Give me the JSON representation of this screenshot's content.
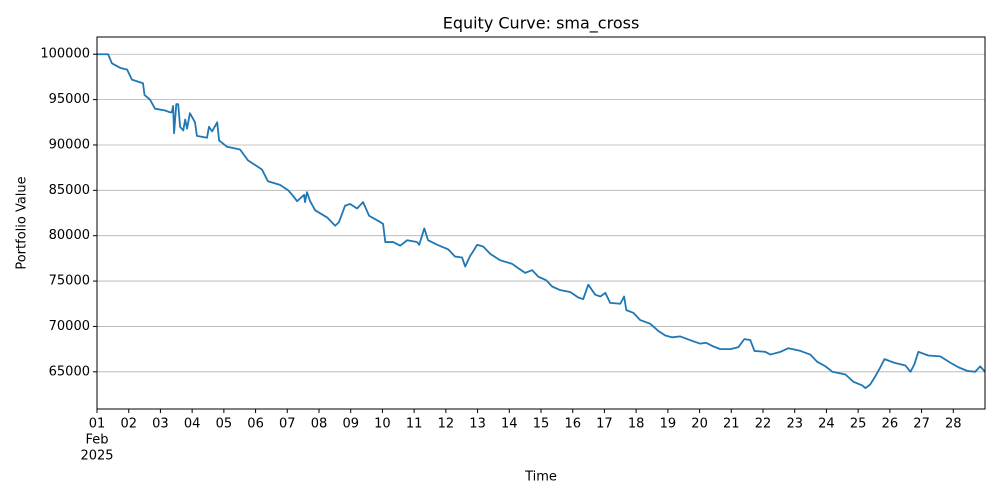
{
  "chart_data": {
    "type": "line",
    "title": "Equity Curve: sma_cross",
    "x_label": "Time",
    "y_label": "Portfolio Value",
    "x_offset_labels": [
      "Feb",
      "2025"
    ],
    "xlim": [
      1,
      29
    ],
    "xticks": [
      {
        "value": 1,
        "label": "01"
      },
      {
        "value": 2,
        "label": "02"
      },
      {
        "value": 3,
        "label": "03"
      },
      {
        "value": 4,
        "label": "04"
      },
      {
        "value": 5,
        "label": "05"
      },
      {
        "value": 6,
        "label": "06"
      },
      {
        "value": 7,
        "label": "07"
      },
      {
        "value": 8,
        "label": "08"
      },
      {
        "value": 9,
        "label": "09"
      },
      10,
      11,
      12,
      13,
      14,
      15,
      16,
      17,
      18,
      19,
      20,
      21,
      22,
      23,
      24,
      25,
      26,
      27,
      28
    ],
    "ylim": [
      60900,
      101900
    ],
    "yticks": [
      65000,
      70000,
      75000,
      80000,
      85000,
      90000,
      95000,
      100000
    ],
    "grid": "y",
    "series": [
      {
        "name": "Portfolio Value",
        "color": "#1f77b4",
        "x": [
          1,
          1.35,
          1.47,
          1.73,
          1.95,
          2.1,
          2.45,
          2.5,
          2.67,
          2.83,
          3.15,
          3.3,
          3.36,
          3.4,
          3.43,
          3.5,
          3.56,
          3.62,
          3.72,
          3.78,
          3.84,
          3.93,
          4.09,
          4.15,
          4.47,
          4.53,
          4.63,
          4.79,
          4.85,
          5.1,
          5.51,
          5.76,
          5.98,
          6.2,
          6.39,
          6.77,
          7.03,
          7.18,
          7.31,
          7.53,
          7.56,
          7.62,
          7.72,
          7.88,
          8.26,
          8.51,
          8.63,
          8.82,
          8.98,
          9.2,
          9.39,
          9.58,
          9.93,
          10.02,
          10.09,
          10.34,
          10.56,
          10.78,
          11.09,
          11.16,
          11.32,
          11.44,
          11.73,
          12.07,
          12.29,
          12.51,
          12.61,
          12.77,
          12.83,
          12.99,
          13.18,
          13.4,
          13.71,
          14.09,
          14.25,
          14.5,
          14.72,
          14.91,
          15.16,
          15.35,
          15.61,
          15.92,
          16.17,
          16.33,
          16.49,
          16.71,
          16.87,
          17.03,
          17.18,
          17.5,
          17.62,
          17.69,
          17.91,
          18.13,
          18.44,
          18.7,
          18.92,
          19.14,
          19.39,
          19.77,
          20.02,
          20.21,
          20.43,
          20.65,
          20.97,
          21.22,
          21.41,
          21.6,
          21.73,
          22.07,
          22.23,
          22.55,
          22.8,
          23.18,
          23.49,
          23.71,
          23.97,
          24.19,
          24.6,
          24.85,
          25.13,
          25.23,
          25.38,
          25.54,
          25.7,
          25.83,
          26.14,
          26.49,
          26.65,
          26.77,
          26.9,
          27.21,
          27.59,
          27.91,
          28.16,
          28.44,
          28.69,
          28.85,
          29
        ],
        "values": [
          100000,
          100000,
          99000,
          98500,
          98300,
          97200,
          96800,
          95500,
          95000,
          94000,
          93800,
          93600,
          93600,
          94300,
          91300,
          94500,
          94500,
          92000,
          91600,
          92800,
          91800,
          93500,
          92500,
          91000,
          90800,
          92000,
          91500,
          92500,
          90500,
          89800,
          89500,
          88300,
          87800,
          87300,
          86000,
          85600,
          85000,
          84400,
          83800,
          84500,
          83700,
          84800,
          83800,
          82800,
          82000,
          81100,
          81500,
          83300,
          83500,
          83000,
          83700,
          82200,
          81500,
          81300,
          79300,
          79300,
          78900,
          79500,
          79300,
          79000,
          80800,
          79500,
          79000,
          78500,
          77700,
          77600,
          76600,
          77800,
          78100,
          79000,
          78800,
          78000,
          77300,
          76900,
          76500,
          75900,
          76200,
          75500,
          75100,
          74400,
          74000,
          73800,
          73200,
          73000,
          74600,
          73500,
          73300,
          73700,
          72600,
          72500,
          73300,
          71800,
          71500,
          70700,
          70300,
          69500,
          69000,
          68800,
          68900,
          68400,
          68100,
          68200,
          67800,
          67500,
          67500,
          67700,
          68600,
          68500,
          67300,
          67200,
          66900,
          67200,
          67600,
          67300,
          66900,
          66100,
          65600,
          65000,
          64700,
          63900,
          63500,
          63200,
          63600,
          64500,
          65500,
          66400,
          66000,
          65700,
          65000,
          65800,
          67200,
          66800,
          66700,
          66000,
          65500,
          65100,
          65000,
          65600,
          65000
        ]
      }
    ]
  }
}
